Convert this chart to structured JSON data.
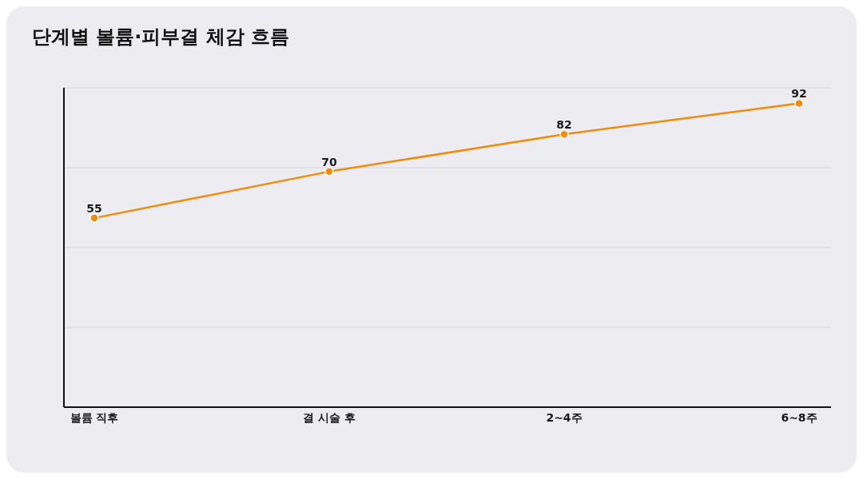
{
  "chart_data": {
    "type": "line",
    "title": "단계별 볼륨·피부결 체감 흐름",
    "categories": [
      "볼륨 직후",
      "결 시술 후",
      "2~4주",
      "6~8주"
    ],
    "series": [
      {
        "color": "#f28a0c",
        "values": [
          55,
          70,
          82,
          92
        ]
      }
    ],
    "ylim": [
      -6,
      97
    ],
    "tick_labels": "x",
    "grid": "y",
    "marker": "circle",
    "line_style": "solid",
    "data_labels": true
  }
}
